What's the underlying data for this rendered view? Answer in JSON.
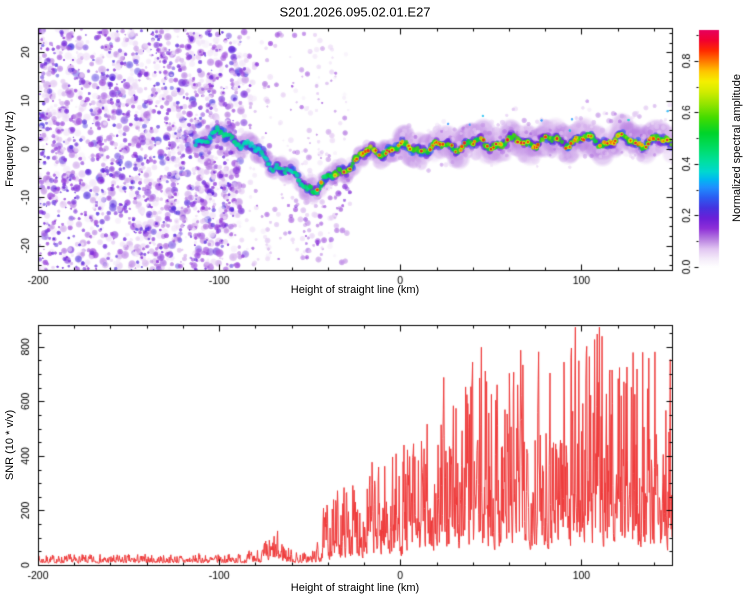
{
  "figure_title": "S201.2026.095.02.01.E27",
  "chart_data": [
    {
      "type": "heatmap",
      "title": "S201.2026.095.02.01.E27",
      "xlabel": "Height of straight line (km)",
      "ylabel": "Frequency (Hz)",
      "xlim": [
        -200,
        150
      ],
      "ylim": [
        -25,
        25
      ],
      "xticks": [
        -200,
        -100,
        0,
        100
      ],
      "xtick_labels": [
        "-200",
        "-100",
        "0",
        "100"
      ],
      "x_minor_step": 20,
      "yticks": [
        -20,
        -10,
        0,
        10,
        20
      ],
      "ytick_labels": [
        "-20",
        "-10",
        "0",
        "10",
        "20"
      ],
      "y_minor_step": 2,
      "grid": false,
      "colorbar": {
        "label": "Normalized spectral amplitude",
        "range": [
          0,
          0.92
        ],
        "ticks": [
          0,
          0.2,
          0.4,
          0.6,
          0.8
        ],
        "tick_labels": [
          "0.0",
          "0.2",
          "0.4",
          "0.6",
          "0.8"
        ],
        "minor_step": 0.1,
        "stops": [
          [
            0.0,
            "#ffffff"
          ],
          [
            0.03,
            "#f5edfa"
          ],
          [
            0.07,
            "#e2c6f2"
          ],
          [
            0.11,
            "#b57be0"
          ],
          [
            0.15,
            "#8e2fd8"
          ],
          [
            0.19,
            "#6a1fd8"
          ],
          [
            0.23,
            "#4433e0"
          ],
          [
            0.27,
            "#2b5df2"
          ],
          [
            0.31,
            "#1e90ff"
          ],
          [
            0.34,
            "#00b8f0"
          ],
          [
            0.37,
            "#00d8d0"
          ],
          [
            0.41,
            "#00e0a0"
          ],
          [
            0.46,
            "#00dd66"
          ],
          [
            0.52,
            "#00d42a"
          ],
          [
            0.58,
            "#44dc00"
          ],
          [
            0.63,
            "#90e400"
          ],
          [
            0.68,
            "#d2ec00"
          ],
          [
            0.72,
            "#f5f000"
          ],
          [
            0.76,
            "#ffc400"
          ],
          [
            0.8,
            "#ff7700"
          ],
          [
            0.84,
            "#ff2a00"
          ],
          [
            0.88,
            "#f20030"
          ],
          [
            0.92,
            "#e6005e"
          ]
        ]
      },
      "echo_trace_x_freq_strength": [
        [
          -113,
          1.8,
          0.3
        ],
        [
          -106,
          2.4,
          0.38
        ],
        [
          -99,
          2.9,
          0.45
        ],
        [
          -93,
          2.3,
          0.42
        ],
        [
          -87,
          1.2,
          0.36
        ],
        [
          -81,
          -0.2,
          0.34
        ],
        [
          -75,
          -1.8,
          0.36
        ],
        [
          -69,
          -3.2,
          0.4
        ],
        [
          -63,
          -4.6,
          0.38
        ],
        [
          -57,
          -6.2,
          0.42
        ],
        [
          -51,
          -7.6,
          0.48
        ],
        [
          -46,
          -7.9,
          0.52
        ],
        [
          -41,
          -6.8,
          0.55
        ],
        [
          -37,
          -5.6,
          0.62
        ],
        [
          -33,
          -4.6,
          0.68
        ],
        [
          -29,
          -3.4,
          0.72
        ],
        [
          -25,
          -2.4,
          0.75
        ],
        [
          -21,
          -1.5,
          0.82
        ],
        [
          -17,
          -0.9,
          0.85
        ],
        [
          -13,
          -0.5,
          0.76
        ],
        [
          -9,
          -0.2,
          0.68
        ],
        [
          -5,
          -0.1,
          0.66
        ],
        [
          0,
          0.0,
          0.68
        ],
        [
          10,
          0.3,
          0.66
        ],
        [
          20,
          0.2,
          0.7
        ],
        [
          30,
          0.8,
          0.66
        ],
        [
          40,
          1.0,
          0.7
        ],
        [
          50,
          1.2,
          0.72
        ],
        [
          60,
          1.3,
          0.68
        ],
        [
          70,
          1.5,
          0.72
        ],
        [
          80,
          1.5,
          0.7
        ],
        [
          90,
          1.7,
          0.72
        ],
        [
          100,
          1.8,
          0.74
        ],
        [
          110,
          1.6,
          0.7
        ],
        [
          120,
          1.8,
          0.74
        ],
        [
          130,
          1.6,
          0.76
        ],
        [
          140,
          1.5,
          0.72
        ],
        [
          150,
          1.2,
          0.7
        ]
      ],
      "noise": {
        "speckle_x_range": [
          -200,
          -92
        ],
        "speckle_amp_range": [
          0.03,
          0.23
        ],
        "streak_columns_x": [
          -138,
          -129,
          -121,
          -113,
          -105,
          -97,
          -89,
          -81,
          -74,
          -67,
          -59,
          -52,
          -45,
          -38,
          -31
        ],
        "sub_trace_streak_x_range": [
          -64,
          -27
        ],
        "right_halo_x_range": [
          0,
          150
        ]
      },
      "seed": 20260951
    },
    {
      "type": "line",
      "series_name": "SNR",
      "series_color": "#ef3b3b",
      "xlabel": "Height of straight line (km)",
      "ylabel": "SNR (10 * v/v)",
      "xlim": [
        -200,
        150
      ],
      "ylim": [
        0,
        880
      ],
      "xticks": [
        -200,
        -100,
        0,
        100
      ],
      "xtick_labels": [
        "-200",
        "-100",
        "0",
        "100"
      ],
      "x_minor_step": 20,
      "yticks": [
        0,
        200,
        400,
        600,
        800
      ],
      "ytick_labels": [
        "0",
        "200",
        "400",
        "600",
        "800"
      ],
      "y_minor_step": 50,
      "grid": false,
      "envelope_x_mean_peakmult": [
        [
          -200,
          20,
          1.9
        ],
        [
          -160,
          20,
          1.9
        ],
        [
          -120,
          21,
          1.9
        ],
        [
          -95,
          22,
          1.9
        ],
        [
          -82,
          26,
          2.0
        ],
        [
          -76,
          40,
          2.1
        ],
        [
          -70,
          62,
          2.1
        ],
        [
          -66,
          58,
          2.1
        ],
        [
          -61,
          34,
          2.0
        ],
        [
          -56,
          24,
          1.9
        ],
        [
          -50,
          26,
          2.0
        ],
        [
          -45,
          40,
          2.4
        ],
        [
          -41,
          110,
          2.5
        ],
        [
          -37,
          125,
          2.3
        ],
        [
          -33,
          148,
          2.2
        ],
        [
          -29,
          158,
          2.2
        ],
        [
          -25,
          168,
          2.2
        ],
        [
          -21,
          165,
          2.2
        ],
        [
          -17,
          195,
          2.2
        ],
        [
          -13,
          185,
          2.2
        ],
        [
          -9,
          208,
          2.2
        ],
        [
          -5,
          222,
          2.2
        ],
        [
          0,
          214,
          2.2
        ],
        [
          5,
          244,
          2.2
        ],
        [
          10,
          236,
          2.2
        ],
        [
          15,
          278,
          2.2
        ],
        [
          20,
          268,
          2.3
        ],
        [
          25,
          308,
          2.3
        ],
        [
          30,
          332,
          2.4
        ],
        [
          35,
          356,
          2.3
        ],
        [
          40,
          350,
          2.3
        ],
        [
          45,
          384,
          2.3
        ],
        [
          50,
          372,
          2.3
        ],
        [
          55,
          388,
          2.3
        ],
        [
          60,
          398,
          2.3
        ],
        [
          65,
          386,
          2.3
        ],
        [
          70,
          408,
          2.3
        ],
        [
          75,
          398,
          2.3
        ],
        [
          80,
          392,
          2.3
        ],
        [
          85,
          404,
          2.3
        ],
        [
          90,
          418,
          2.4
        ],
        [
          95,
          438,
          2.45
        ],
        [
          100,
          414,
          2.4
        ],
        [
          105,
          396,
          2.35
        ],
        [
          110,
          418,
          2.4
        ],
        [
          115,
          428,
          2.35
        ],
        [
          120,
          424,
          2.4
        ],
        [
          125,
          406,
          2.35
        ],
        [
          130,
          414,
          2.35
        ],
        [
          135,
          396,
          2.3
        ],
        [
          140,
          390,
          2.3
        ],
        [
          145,
          372,
          2.3
        ],
        [
          150,
          362,
          2.3
        ]
      ],
      "samples": 1450,
      "seed": 7
    }
  ]
}
